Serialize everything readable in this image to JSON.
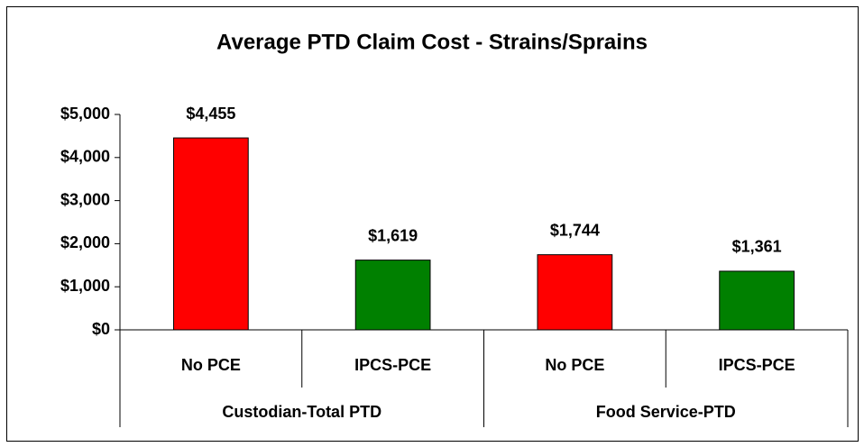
{
  "chart_data": {
    "type": "bar",
    "title": "Average PTD Claim Cost - Strains/Sprains",
    "categories": [
      "No PCE",
      "IPCS-PCE",
      "No PCE",
      "IPCS-PCE"
    ],
    "groups": [
      "Custodian-Total PTD",
      "Food Service-PTD"
    ],
    "values": [
      4455,
      1619,
      1744,
      1361
    ],
    "value_labels": [
      "$4,455",
      "$1,619",
      "$1,744",
      "$1,361"
    ],
    "colors": [
      "#ff0000",
      "#008000",
      "#ff0000",
      "#008000"
    ],
    "ylim": [
      0,
      5000
    ],
    "yticks": [
      {
        "value": 0,
        "label": "$0"
      },
      {
        "value": 1000,
        "label": "$1,000"
      },
      {
        "value": 2000,
        "label": "$2,000"
      },
      {
        "value": 3000,
        "label": "$3,000"
      },
      {
        "value": 4000,
        "label": "$4,000"
      },
      {
        "value": 5000,
        "label": "$5,000"
      }
    ],
    "grid": false
  }
}
